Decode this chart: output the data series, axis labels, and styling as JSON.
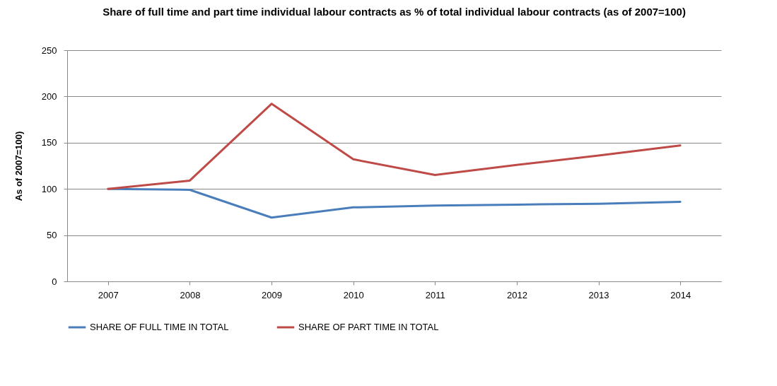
{
  "chart_data": {
    "type": "line",
    "title": "Share of full time and part time individual labour contracts as % of total individual labour contracts (as of 2007=100)",
    "ylabel": "As of 2007=100)",
    "categories": [
      "2007",
      "2008",
      "2009",
      "2010",
      "2011",
      "2012",
      "2013",
      "2014"
    ],
    "series": [
      {
        "name": "SHARE OF FULL TIME IN TOTAL",
        "color": "#4a7ebb",
        "values": [
          100,
          99,
          69,
          80,
          82,
          83,
          84,
          86
        ]
      },
      {
        "name": "SHARE OF PART TIME IN TOTAL",
        "color": "#be4b48",
        "values": [
          100,
          109,
          192,
          132,
          115,
          126,
          136,
          147
        ]
      }
    ],
    "ylim": [
      0,
      250
    ],
    "yticks": [
      0,
      50,
      100,
      150,
      200,
      250
    ],
    "grid": "y",
    "legend": "bottom",
    "marker": "none",
    "line_style": "solid"
  }
}
